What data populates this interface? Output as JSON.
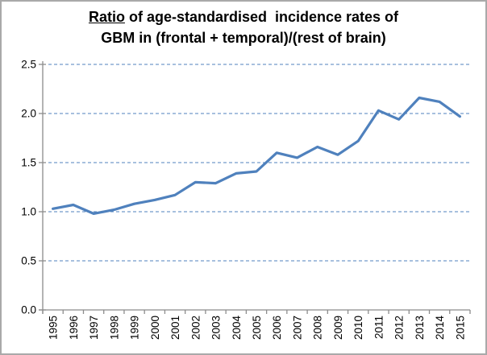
{
  "title": {
    "underlined": "Ratio",
    "rest_line1": " of age-standardised  incidence rates of",
    "line2": "GBM in (frontal + temporal)/(rest of brain)"
  },
  "chart_data": {
    "type": "line",
    "title": "Ratio of age-standardised incidence rates of GBM in (frontal + temporal)/(rest of brain)",
    "categories": [
      "1995",
      "1996",
      "1997",
      "1998",
      "1999",
      "2000",
      "2001",
      "2002",
      "2003",
      "2004",
      "2005",
      "2006",
      "2007",
      "2008",
      "2009",
      "2010",
      "2011",
      "2012",
      "2013",
      "2014",
      "2015"
    ],
    "series": [
      {
        "name": "Ratio (frontal + temporal)/(rest of brain)",
        "values": [
          1.03,
          1.07,
          0.98,
          1.02,
          1.08,
          1.12,
          1.17,
          1.3,
          1.29,
          1.39,
          1.41,
          1.6,
          1.55,
          1.66,
          1.58,
          1.72,
          2.03,
          1.94,
          2.16,
          2.12,
          1.97
        ]
      }
    ],
    "xlabel": "",
    "ylabel": "",
    "ylim": [
      0,
      2.5
    ],
    "ytick_step": 0.5,
    "ytick_labels": [
      "0.0",
      "0.5",
      "1.0",
      "1.5",
      "2.0",
      "2.5"
    ],
    "grid": "horizontal-dashed",
    "legend": "none",
    "x_tick_label_rotation": -90,
    "colors": {
      "line": "#4F81BD",
      "gridline": "#4F81BD",
      "axis": "#8c8c8c",
      "text": "#000000",
      "border": "#a9a9a9",
      "background": "#ffffff"
    }
  }
}
